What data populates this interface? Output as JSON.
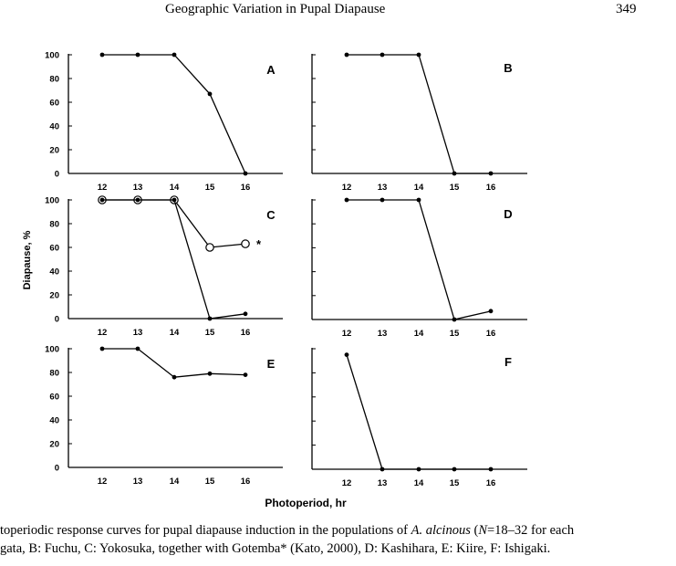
{
  "header": {
    "running_title": "Geographic Variation in Pupal Diapause",
    "page_number": "349"
  },
  "figure": {
    "ylabel": "Diapause, %",
    "xlabel": "Photoperiod, hr",
    "marker_note": "*"
  },
  "caption": {
    "line1_a": "toperiodic response curves for pupal diapause induction in the populations of ",
    "line1_species": "A. alcinous",
    "line1_b": " (",
    "line1_N": "N",
    "line1_c": "=18–32 for each",
    "line2": "gata, B: Fuchu, C: Yokosuka, together with Gotemba* (Kato, 2000), D: Kashihara, E: Kiire, F: Ishigaki."
  },
  "chart_data": [
    {
      "panel": "A",
      "type": "line",
      "x": [
        12,
        13,
        14,
        15,
        16
      ],
      "xticks": [
        "12",
        "13",
        "14",
        "15",
        "16"
      ],
      "yticks": [
        "0",
        "20",
        "40",
        "60",
        "80",
        "100"
      ],
      "ylim": [
        0,
        100
      ],
      "series": [
        {
          "values": [
            100,
            100,
            100,
            67,
            0
          ],
          "marker": "filled"
        }
      ]
    },
    {
      "panel": "B",
      "type": "line",
      "x": [
        12,
        13,
        14,
        15,
        16
      ],
      "xticks": [
        "12",
        "13",
        "14",
        "15",
        "16"
      ],
      "yticks": [],
      "ylim": [
        0,
        100
      ],
      "series": [
        {
          "values": [
            100,
            100,
            100,
            0,
            0
          ],
          "marker": "filled"
        }
      ]
    },
    {
      "panel": "C",
      "type": "line",
      "x": [
        12,
        13,
        14,
        15,
        16
      ],
      "xticks": [
        "12",
        "13",
        "14",
        "15",
        "16"
      ],
      "yticks": [
        "0",
        "20",
        "40",
        "60",
        "80",
        "100"
      ],
      "ylim": [
        0,
        100
      ],
      "series": [
        {
          "values": [
            100,
            100,
            100,
            0,
            4
          ],
          "marker": "filled"
        },
        {
          "values": [
            100,
            100,
            100,
            60,
            63
          ],
          "marker": "open",
          "note": "*"
        }
      ]
    },
    {
      "panel": "D",
      "type": "line",
      "x": [
        12,
        13,
        14,
        15,
        16
      ],
      "xticks": [
        "12",
        "13",
        "14",
        "15",
        "16"
      ],
      "yticks": [],
      "ylim": [
        0,
        100
      ],
      "series": [
        {
          "values": [
            100,
            100,
            100,
            0,
            7
          ],
          "marker": "filled"
        }
      ]
    },
    {
      "panel": "E",
      "type": "line",
      "x": [
        12,
        13,
        14,
        15,
        16
      ],
      "xticks": [
        "12",
        "13",
        "14",
        "15",
        "16"
      ],
      "yticks": [
        "0",
        "20",
        "40",
        "60",
        "80",
        "100"
      ],
      "ylim": [
        0,
        100
      ],
      "series": [
        {
          "values": [
            100,
            100,
            76,
            79,
            78
          ],
          "marker": "filled"
        }
      ]
    },
    {
      "panel": "F",
      "type": "line",
      "x": [
        12,
        13,
        14,
        15,
        16
      ],
      "xticks": [
        "12",
        "13",
        "14",
        "15",
        "16"
      ],
      "yticks": [],
      "ylim": [
        0,
        100
      ],
      "series": [
        {
          "values": [
            95,
            0,
            0,
            0,
            0
          ],
          "marker": "filled"
        }
      ]
    }
  ]
}
